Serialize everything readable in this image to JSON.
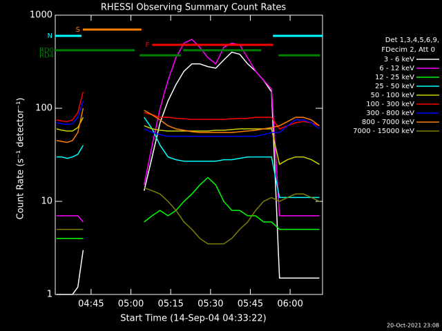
{
  "chart_data": {
    "type": "line",
    "title": "RHESSI Observing Summary Count Rates",
    "x_label": "Start Time (14-Sep-04 04:33:22)",
    "y_label": "Count Rate (s⁻¹ detector⁻¹)",
    "legend_header": [
      "Det 1,3,4,5,6,9,",
      "FDecim 2, Att 0"
    ],
    "timestamp": "20-Oct-2021 23:08",
    "log_y": true,
    "xlim": [
      31.5,
      132.2
    ],
    "ylim": [
      1,
      1000
    ],
    "yticks": [
      1,
      10,
      100,
      1000
    ],
    "xticks": [
      {
        "value": 45,
        "label": "04:45"
      },
      {
        "value": 60,
        "label": "05:00"
      },
      {
        "value": 75,
        "label": "05:15"
      },
      {
        "value": 90,
        "label": "05:30"
      },
      {
        "value": 105,
        "label": "05:45"
      },
      {
        "value": 120,
        "label": "06:00"
      }
    ],
    "x": [
      32,
      34,
      36,
      38,
      40,
      42,
      53,
      65,
      68,
      71,
      74,
      77,
      80,
      83,
      86,
      89,
      92,
      95,
      98,
      101,
      104,
      107,
      110,
      113,
      116,
      119,
      122,
      125,
      128,
      131
    ],
    "series": [
      {
        "name": "3 - 6 keV",
        "color": "#ffffff",
        "values": [
          1,
          1,
          1,
          1,
          1.2,
          3,
          null,
          13,
          30,
          70,
          120,
          180,
          250,
          300,
          300,
          280,
          270,
          330,
          400,
          380,
          300,
          250,
          200,
          150,
          1.5,
          1.5,
          1.5,
          1.5,
          1.5,
          1.5
        ]
      },
      {
        "name": "6 - 12 keV",
        "color": "#ff00ff",
        "values": [
          7,
          7,
          7,
          7,
          7,
          6,
          null,
          15,
          40,
          100,
          200,
          350,
          500,
          550,
          450,
          350,
          300,
          450,
          500,
          480,
          350,
          250,
          200,
          160,
          7,
          7,
          7,
          7,
          7,
          7
        ]
      },
      {
        "name": "12 - 25 keV",
        "color": "#00ff00",
        "values": [
          4,
          4,
          4,
          4,
          4,
          4,
          null,
          6,
          7,
          8,
          7,
          8,
          10,
          12,
          15,
          18,
          15,
          10,
          8,
          8,
          7,
          7,
          6,
          6,
          5,
          5,
          5,
          5,
          5,
          5
        ]
      },
      {
        "name": "25 - 50 keV",
        "color": "#00ffff",
        "values": [
          30,
          30,
          29,
          30,
          32,
          40,
          null,
          80,
          60,
          40,
          30,
          28,
          27,
          27,
          27,
          27,
          27,
          28,
          28,
          29,
          30,
          30,
          30,
          30,
          11,
          11,
          11,
          11,
          11,
          11
        ]
      },
      {
        "name": "50 - 100 keV",
        "color": "#d0d000",
        "values": [
          60,
          58,
          57,
          57,
          62,
          80,
          null,
          65,
          60,
          58,
          57,
          57,
          57,
          57,
          57,
          57,
          58,
          58,
          59,
          60,
          60,
          60,
          60,
          60,
          25,
          28,
          30,
          30,
          28,
          25
        ]
      },
      {
        "name": "100 - 300 keV",
        "color": "#ff0000",
        "values": [
          75,
          73,
          72,
          75,
          90,
          150,
          null,
          90,
          85,
          80,
          80,
          78,
          77,
          76,
          76,
          76,
          76,
          76,
          77,
          78,
          78,
          80,
          80,
          80,
          60,
          65,
          70,
          72,
          70,
          65
        ]
      },
      {
        "name": "300 - 800 keV",
        "color": "#0000ff",
        "values": [
          70,
          68,
          67,
          68,
          80,
          120,
          null,
          60,
          55,
          52,
          50,
          50,
          50,
          50,
          50,
          50,
          50,
          50,
          50,
          50,
          50,
          50,
          52,
          55,
          55,
          65,
          75,
          75,
          70,
          60
        ]
      },
      {
        "name": "800 - 7000 keV",
        "color": "#ff8000",
        "values": [
          45,
          44,
          43,
          45,
          55,
          100,
          null,
          95,
          85,
          75,
          65,
          60,
          58,
          56,
          55,
          55,
          55,
          55,
          55,
          56,
          57,
          58,
          60,
          62,
          65,
          72,
          80,
          80,
          75,
          65
        ]
      },
      {
        "name": "7000 - 15000 keV",
        "color": "#808000",
        "values": [
          5,
          5,
          5,
          5,
          5,
          5,
          null,
          14,
          13,
          12,
          10,
          8,
          6,
          5,
          4,
          3.5,
          3.5,
          3.5,
          4,
          5,
          6,
          8,
          10,
          11,
          10,
          11,
          12,
          12,
          11,
          10
        ]
      }
    ],
    "flags": [
      {
        "label": "S",
        "color": "#ff8000",
        "level": 700,
        "segments": [
          [
            41.9,
            64
          ]
        ]
      },
      {
        "label": "N",
        "color": "#00ffff",
        "level": 600,
        "segments": [
          [
            31.5,
            41.4
          ],
          [
            113.5,
            132.2
          ]
        ]
      },
      {
        "label": "F",
        "color": "#ff0000",
        "level": 480,
        "segments": [
          [
            68,
            113.5
          ]
        ]
      },
      {
        "label": "RD0",
        "color": "#008000",
        "level": 420,
        "segments": [
          [
            31.5,
            61.4
          ],
          [
            79.7,
            109.1
          ]
        ]
      },
      {
        "label": "RD4",
        "color": "#008000",
        "level": 370,
        "segments": [
          [
            63.3,
            78.9
          ],
          [
            115.6,
            131.2
          ]
        ]
      }
    ]
  }
}
